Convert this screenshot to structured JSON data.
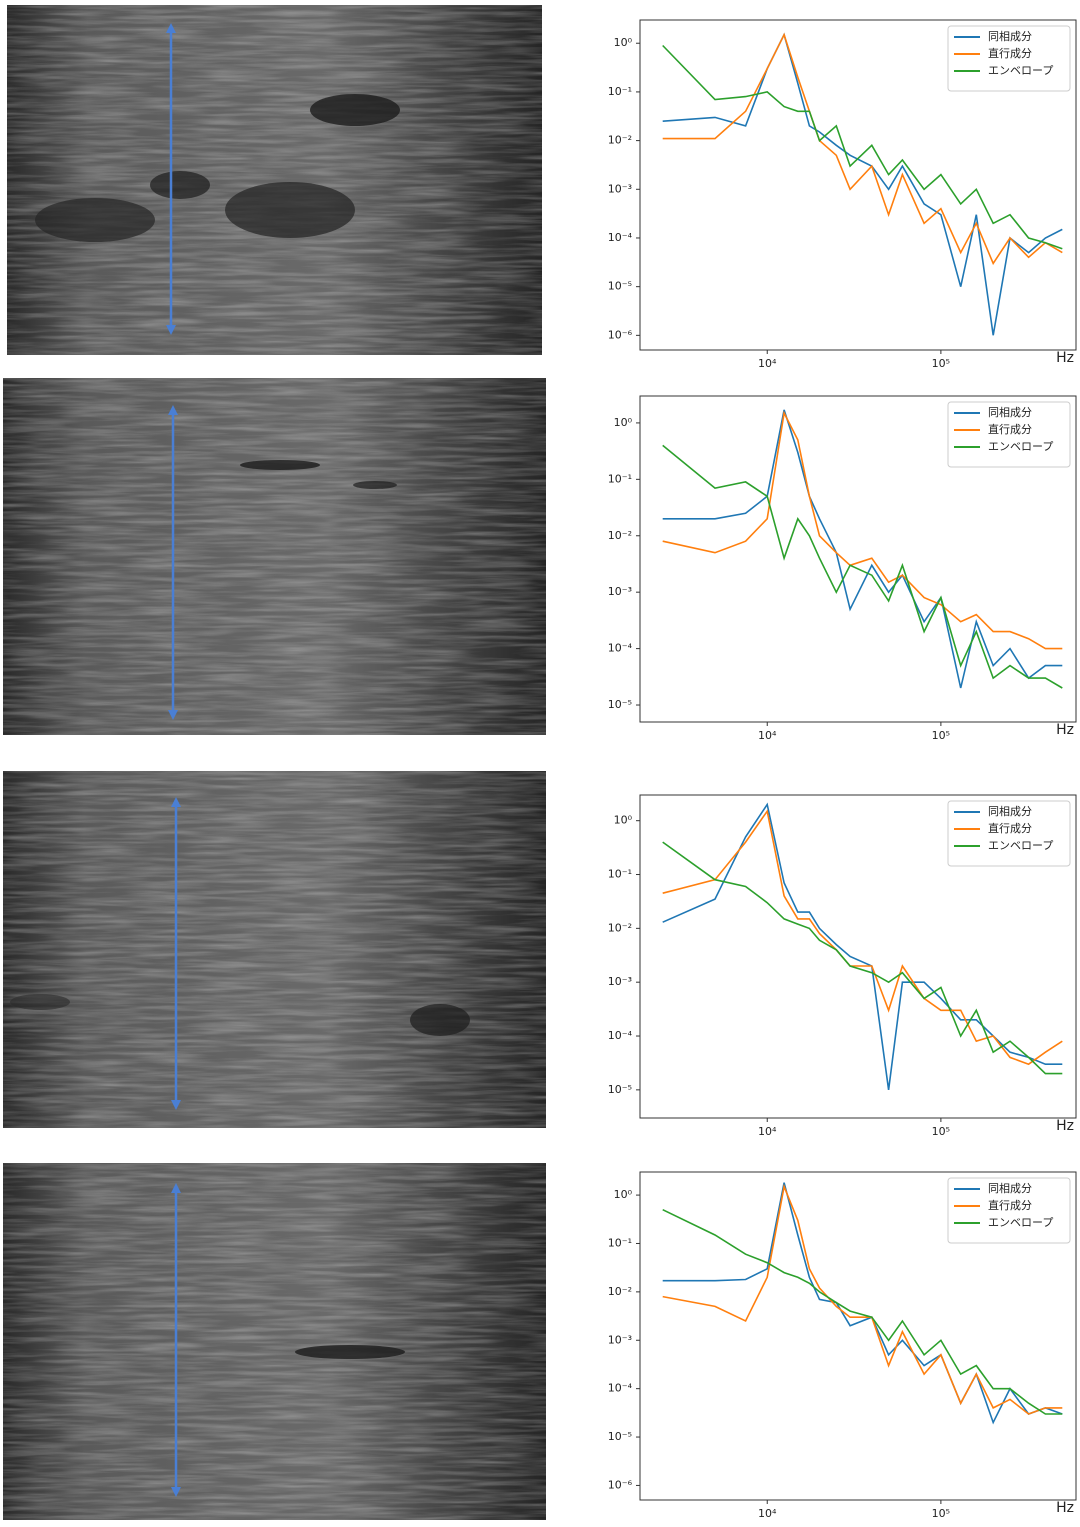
{
  "chart_data": [
    {
      "type": "line",
      "xscale": "log",
      "yscale": "log",
      "legend": "upper right",
      "xlabel": "Hz",
      "xlim": [
        1850,
        600000
      ],
      "ylim": [
        5e-07,
        3
      ],
      "xticks": [
        {
          "value": 10000,
          "label": "10⁴"
        },
        {
          "value": 100000,
          "label": "10⁵"
        }
      ],
      "yticks": [
        {
          "value": 1e-06,
          "label": "10⁻⁶"
        },
        {
          "value": 1e-05,
          "label": "10⁻⁵"
        },
        {
          "value": 0.0001,
          "label": "10⁻⁴"
        },
        {
          "value": 0.001,
          "label": "10⁻³"
        },
        {
          "value": 0.01,
          "label": "10⁻²"
        },
        {
          "value": 0.1,
          "label": "10⁻¹"
        },
        {
          "value": 1,
          "label": "10⁰"
        }
      ],
      "x": [
        2500,
        5000,
        7500,
        10000,
        12500,
        15000,
        17500,
        20000,
        25000,
        30000,
        40000,
        50000,
        60000,
        80000,
        100000,
        130000,
        160000,
        200000,
        250000,
        320000,
        400000,
        500000
      ],
      "series": [
        {
          "name": "同相成分",
          "color": "#1f77b4",
          "values": [
            0.025,
            0.03,
            0.02,
            0.3,
            1.5,
            0.15,
            0.02,
            0.015,
            0.008,
            0.005,
            0.003,
            0.001,
            0.003,
            0.0005,
            0.0003,
            1e-05,
            0.0003,
            1e-06,
            0.0001,
            5e-05,
            0.0001,
            0.00015
          ]
        },
        {
          "name": "直行成分",
          "color": "#ff7f0e",
          "values": [
            0.011,
            0.011,
            0.04,
            0.3,
            1.5,
            0.2,
            0.04,
            0.01,
            0.005,
            0.001,
            0.003,
            0.0003,
            0.002,
            0.0002,
            0.0004,
            5e-05,
            0.0002,
            3e-05,
            0.0001,
            4e-05,
            8e-05,
            5e-05
          ]
        },
        {
          "name": "エンベロープ",
          "color": "#2ca02c",
          "values": [
            0.9,
            0.07,
            0.08,
            0.1,
            0.05,
            0.04,
            0.04,
            0.01,
            0.02,
            0.003,
            0.008,
            0.002,
            0.004,
            0.001,
            0.002,
            0.0005,
            0.001,
            0.0002,
            0.0003,
            0.0001,
            8e-05,
            6e-05
          ]
        }
      ]
    },
    {
      "type": "line",
      "xscale": "log",
      "yscale": "log",
      "legend": "upper right",
      "xlabel": "Hz",
      "xlim": [
        1850,
        600000
      ],
      "ylim": [
        5e-06,
        3
      ],
      "xticks": [
        {
          "value": 10000,
          "label": "10⁴"
        },
        {
          "value": 100000,
          "label": "10⁵"
        }
      ],
      "yticks": [
        {
          "value": 1e-05,
          "label": "10⁻⁵"
        },
        {
          "value": 0.0001,
          "label": "10⁻⁴"
        },
        {
          "value": 0.001,
          "label": "10⁻³"
        },
        {
          "value": 0.01,
          "label": "10⁻²"
        },
        {
          "value": 0.1,
          "label": "10⁻¹"
        },
        {
          "value": 1,
          "label": "10⁰"
        }
      ],
      "x": [
        2500,
        5000,
        7500,
        10000,
        12500,
        15000,
        17500,
        20000,
        25000,
        30000,
        40000,
        50000,
        60000,
        80000,
        100000,
        130000,
        160000,
        200000,
        250000,
        320000,
        400000,
        500000
      ],
      "series": [
        {
          "name": "同相成分",
          "color": "#1f77b4",
          "values": [
            0.02,
            0.02,
            0.025,
            0.05,
            1.7,
            0.3,
            0.05,
            0.02,
            0.005,
            0.0005,
            0.003,
            0.001,
            0.002,
            0.0003,
            0.0008,
            2e-05,
            0.0003,
            5e-05,
            0.0001,
            3e-05,
            5e-05,
            5e-05
          ]
        },
        {
          "name": "直行成分",
          "color": "#ff7f0e",
          "values": [
            0.008,
            0.005,
            0.008,
            0.02,
            1.5,
            0.5,
            0.05,
            0.01,
            0.005,
            0.003,
            0.004,
            0.0015,
            0.002,
            0.0008,
            0.0006,
            0.0003,
            0.0004,
            0.0002,
            0.0002,
            0.00015,
            0.0001,
            0.0001
          ]
        },
        {
          "name": "エンベロープ",
          "color": "#2ca02c",
          "values": [
            0.4,
            0.07,
            0.09,
            0.05,
            0.004,
            0.02,
            0.01,
            0.004,
            0.001,
            0.003,
            0.002,
            0.0007,
            0.003,
            0.0002,
            0.0008,
            5e-05,
            0.0002,
            3e-05,
            5e-05,
            3e-05,
            3e-05,
            2e-05
          ]
        }
      ]
    },
    {
      "type": "line",
      "xscale": "log",
      "yscale": "log",
      "legend": "upper right",
      "xlabel": "Hz",
      "xlim": [
        1850,
        600000
      ],
      "ylim": [
        3e-06,
        3
      ],
      "xticks": [
        {
          "value": 10000,
          "label": "10⁴"
        },
        {
          "value": 100000,
          "label": "10⁵"
        }
      ],
      "yticks": [
        {
          "value": 1e-05,
          "label": "10⁻⁵"
        },
        {
          "value": 0.0001,
          "label": "10⁻⁴"
        },
        {
          "value": 0.001,
          "label": "10⁻³"
        },
        {
          "value": 0.01,
          "label": "10⁻²"
        },
        {
          "value": 0.1,
          "label": "10⁻¹"
        },
        {
          "value": 1,
          "label": "10⁰"
        }
      ],
      "x": [
        2500,
        5000,
        7500,
        10000,
        12500,
        15000,
        17500,
        20000,
        25000,
        30000,
        40000,
        50000,
        60000,
        80000,
        100000,
        130000,
        160000,
        200000,
        250000,
        320000,
        400000,
        500000
      ],
      "series": [
        {
          "name": "同相成分",
          "color": "#1f77b4",
          "values": [
            0.013,
            0.035,
            0.5,
            2.0,
            0.07,
            0.02,
            0.02,
            0.01,
            0.005,
            0.003,
            0.002,
            1e-05,
            0.001,
            0.001,
            0.0005,
            0.0002,
            0.0002,
            0.0001,
            5e-05,
            4e-05,
            3e-05,
            3e-05
          ]
        },
        {
          "name": "直行成分",
          "color": "#ff7f0e",
          "values": [
            0.045,
            0.08,
            0.4,
            1.5,
            0.04,
            0.015,
            0.015,
            0.008,
            0.004,
            0.002,
            0.002,
            0.0003,
            0.002,
            0.0005,
            0.0003,
            0.0003,
            8e-05,
            0.0001,
            4e-05,
            3e-05,
            5e-05,
            8e-05
          ]
        },
        {
          "name": "エンベロープ",
          "color": "#2ca02c",
          "values": [
            0.4,
            0.08,
            0.06,
            0.03,
            0.015,
            0.012,
            0.01,
            0.006,
            0.004,
            0.002,
            0.0015,
            0.001,
            0.0015,
            0.0005,
            0.0008,
            0.0001,
            0.0003,
            5e-05,
            8e-05,
            4e-05,
            2e-05,
            2e-05
          ]
        }
      ]
    },
    {
      "type": "line",
      "xscale": "log",
      "yscale": "log",
      "legend": "upper right",
      "xlabel": "Hz",
      "xlim": [
        1850,
        600000
      ],
      "ylim": [
        5e-07,
        3
      ],
      "xticks": [
        {
          "value": 10000,
          "label": "10⁴"
        },
        {
          "value": 100000,
          "label": "10⁵"
        }
      ],
      "yticks": [
        {
          "value": 1e-06,
          "label": "10⁻⁶"
        },
        {
          "value": 1e-05,
          "label": "10⁻⁵"
        },
        {
          "value": 0.0001,
          "label": "10⁻⁴"
        },
        {
          "value": 0.001,
          "label": "10⁻³"
        },
        {
          "value": 0.01,
          "label": "10⁻²"
        },
        {
          "value": 0.1,
          "label": "10⁻¹"
        },
        {
          "value": 1,
          "label": "10⁰"
        }
      ],
      "x": [
        2500,
        5000,
        7500,
        10000,
        12500,
        15000,
        17500,
        20000,
        25000,
        30000,
        40000,
        50000,
        60000,
        80000,
        100000,
        130000,
        160000,
        200000,
        250000,
        320000,
        400000,
        500000
      ],
      "series": [
        {
          "name": "同相成分",
          "color": "#1f77b4",
          "values": [
            0.017,
            0.017,
            0.018,
            0.03,
            1.8,
            0.15,
            0.02,
            0.007,
            0.006,
            0.002,
            0.003,
            0.0005,
            0.001,
            0.0003,
            0.0005,
            5e-05,
            0.0002,
            2e-05,
            0.0001,
            3e-05,
            4e-05,
            3e-05
          ]
        },
        {
          "name": "直行成分",
          "color": "#ff7f0e",
          "values": [
            0.008,
            0.005,
            0.0025,
            0.02,
            1.5,
            0.3,
            0.03,
            0.012,
            0.005,
            0.003,
            0.003,
            0.0003,
            0.0015,
            0.0002,
            0.0005,
            5e-05,
            0.0002,
            4e-05,
            6e-05,
            3e-05,
            4e-05,
            4e-05
          ]
        },
        {
          "name": "エンベロープ",
          "color": "#2ca02c",
          "values": [
            0.5,
            0.15,
            0.06,
            0.04,
            0.025,
            0.02,
            0.015,
            0.01,
            0.006,
            0.004,
            0.003,
            0.001,
            0.0025,
            0.0005,
            0.001,
            0.0002,
            0.0003,
            0.0001,
            0.0001,
            5e-05,
            3e-05,
            3e-05
          ]
        }
      ]
    }
  ]
}
